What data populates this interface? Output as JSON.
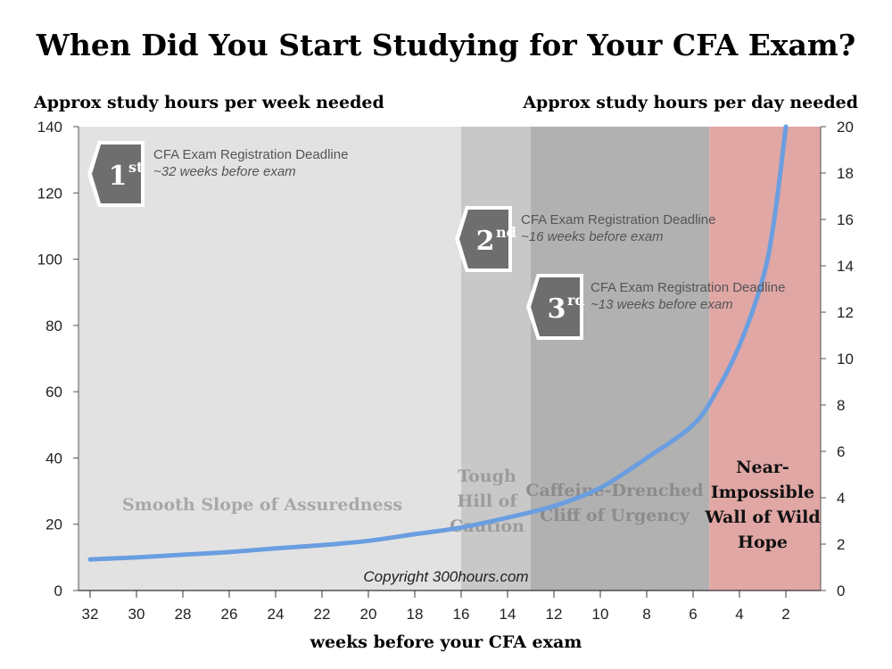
{
  "title": "When Did You Start Studying for Your CFA Exam?",
  "left_axis_title": "Approx study hours per week needed",
  "right_axis_title": "Approx study hours per day needed",
  "x_axis_title": "weeks before your CFA exam",
  "copyright": "Copyright 300hours.com",
  "colors": {
    "zone1": "#e2e2e2",
    "zone2": "#c8c8c8",
    "zone3": "#b1b1b1",
    "zone4": "#e0a7a5",
    "curve": "#6a9ee0",
    "badge": "#6e6e6e"
  },
  "zones": [
    {
      "from": 32.5,
      "to": 16,
      "label_lines": [
        "Smooth Slope of Assuredness"
      ],
      "label_color": "#a8a8a8",
      "fill": "zone1"
    },
    {
      "from": 16,
      "to": 13,
      "label_lines": [
        "Tough",
        "Hill of",
        "Caution"
      ],
      "label_color": "#9c9c9c",
      "fill": "zone2"
    },
    {
      "from": 13,
      "to": 5.3,
      "label_lines": [
        "Caffeine-Drenched",
        "Cliff of Urgency"
      ],
      "label_color": "#8c8c8c",
      "fill": "zone3"
    },
    {
      "from": 5.3,
      "to": 0.5,
      "label_lines": [
        "Near-",
        "Impossible",
        "Wall of Wild",
        "Hope"
      ],
      "label_color": "#111111",
      "fill": "zone4"
    }
  ],
  "callouts": [
    {
      "badge_num": "1",
      "badge_sup": "st",
      "line1": "CFA Exam Registration Deadline",
      "line2": "~32 weeks before exam"
    },
    {
      "badge_num": "2",
      "badge_sup": "nd",
      "line1": "CFA Exam Registration Deadline",
      "line2": "~16 weeks before exam"
    },
    {
      "badge_num": "3",
      "badge_sup": "rd",
      "line1": "CFA Exam Registration Deadline",
      "line2": "~13 weeks before exam"
    }
  ],
  "chart_data": {
    "type": "line",
    "title": "When Did You Start Studying for Your CFA Exam?",
    "xlabel": "weeks before your CFA exam",
    "ylabel": "Approx study hours per week needed",
    "y2label": "Approx study hours per day needed",
    "xlim": [
      32.5,
      0.5
    ],
    "x_reversed": true,
    "ylim": [
      0,
      140
    ],
    "y2lim": [
      0,
      20
    ],
    "x_ticks": [
      32,
      30,
      28,
      26,
      24,
      22,
      20,
      18,
      16,
      14,
      12,
      10,
      8,
      6,
      4,
      2
    ],
    "y_ticks": [
      0,
      20,
      40,
      60,
      80,
      100,
      120,
      140
    ],
    "y2_ticks": [
      0,
      2,
      4,
      6,
      8,
      10,
      12,
      14,
      16,
      18,
      20
    ],
    "grid": false,
    "series": [
      {
        "x": [
          32,
          30,
          28,
          26,
          24,
          22,
          20,
          18,
          16,
          14,
          12,
          10,
          8,
          6,
          5,
          4,
          3,
          2.5,
          2
        ],
        "values": [
          9.4,
          10,
          10.8,
          11.6,
          12.7,
          13.7,
          15,
          17,
          19,
          22,
          25.5,
          31,
          40,
          50,
          60,
          74,
          94,
          112,
          140
        ]
      }
    ]
  }
}
